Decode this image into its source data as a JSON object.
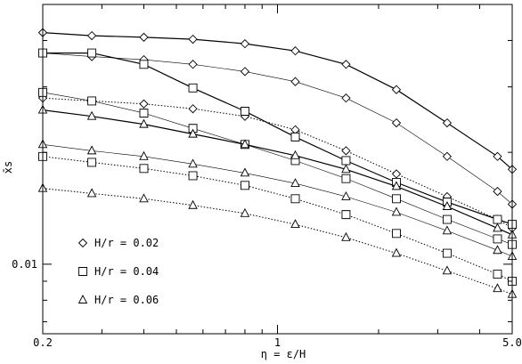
{
  "chart_data": {
    "type": "line",
    "title": "",
    "xlabel": "η = ε/H",
    "ylabel": "x̄s",
    "xscale": "log",
    "yscale": "log",
    "xlim": [
      0.2,
      5.0
    ],
    "ylim": [
      0.0065,
      0.05
    ],
    "grid": false,
    "legend_position": "bottom-left",
    "x_tick_labels": [
      {
        "value": 0.2,
        "label": "0.2"
      },
      {
        "value": 1,
        "label": "1"
      },
      {
        "value": 5.0,
        "label": "5.0"
      }
    ],
    "y_tick_labels": [
      {
        "value": 0.01,
        "label": "0.01"
      }
    ],
    "legend": [
      {
        "marker": "diamond",
        "label": "H/r = 0.02"
      },
      {
        "marker": "square",
        "label": "H/r = 0.04"
      },
      {
        "marker": "triangle",
        "label": "H/r = 0.06"
      }
    ],
    "x": [
      0.2,
      0.28,
      0.4,
      0.56,
      0.8,
      1.13,
      1.6,
      2.26,
      3.2,
      4.52,
      5.0
    ],
    "series": [
      {
        "marker": "diamond",
        "line": "solid",
        "y": [
          0.042,
          0.0412,
          0.0408,
          0.0403,
          0.0392,
          0.0375,
          0.0345,
          0.0295,
          0.024,
          0.0195,
          0.018
        ]
      },
      {
        "marker": "diamond",
        "line": "thin",
        "y": [
          0.037,
          0.0362,
          0.0355,
          0.0345,
          0.033,
          0.031,
          0.028,
          0.024,
          0.0195,
          0.0157,
          0.0145
        ]
      },
      {
        "marker": "diamond",
        "line": "dotted",
        "y": [
          0.028,
          0.0275,
          0.027,
          0.0262,
          0.025,
          0.023,
          0.0202,
          0.0175,
          0.0152,
          0.0132,
          0.0125
        ]
      },
      {
        "marker": "square",
        "line": "solid",
        "y": [
          0.037,
          0.037,
          0.0345,
          0.0298,
          0.0258,
          0.022,
          0.019,
          0.0166,
          0.0147,
          0.0132,
          0.0128
        ]
      },
      {
        "marker": "square",
        "line": "thin",
        "y": [
          0.029,
          0.0275,
          0.0255,
          0.0232,
          0.021,
          0.019,
          0.017,
          0.015,
          0.0132,
          0.0117,
          0.0113
        ]
      },
      {
        "marker": "square",
        "line": "dotted",
        "y": [
          0.0195,
          0.0188,
          0.0181,
          0.0173,
          0.0163,
          0.015,
          0.0136,
          0.0121,
          0.0107,
          0.0094,
          0.009
        ]
      },
      {
        "marker": "triangle",
        "line": "solid",
        "y": [
          0.026,
          0.025,
          0.0238,
          0.0224,
          0.021,
          0.0196,
          0.018,
          0.0162,
          0.0143,
          0.0125,
          0.012
        ]
      },
      {
        "marker": "triangle",
        "line": "thin",
        "y": [
          0.021,
          0.0202,
          0.0195,
          0.0186,
          0.0176,
          0.0165,
          0.0152,
          0.0138,
          0.0123,
          0.0109,
          0.0105
        ]
      },
      {
        "marker": "triangle",
        "line": "dotted",
        "y": [
          0.016,
          0.0155,
          0.015,
          0.0144,
          0.0137,
          0.0128,
          0.0118,
          0.0107,
          0.0096,
          0.0086,
          0.0083
        ]
      }
    ]
  }
}
